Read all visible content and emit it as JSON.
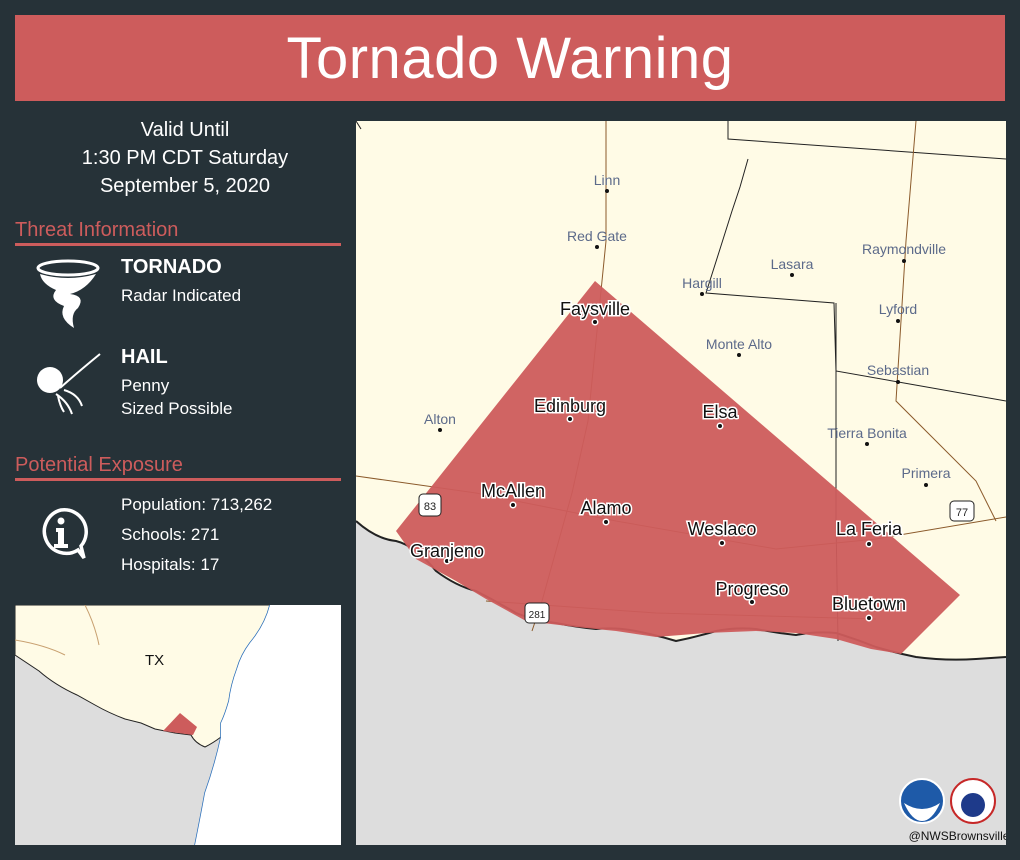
{
  "header": {
    "title": "Tornado Warning"
  },
  "valid": {
    "line1": "Valid Until",
    "line2": "1:30 PM CDT Saturday",
    "line3": "September 5, 2020"
  },
  "threat": {
    "heading": "Threat Information",
    "items": [
      {
        "icon": "tornado-icon",
        "title": "TORNADO",
        "lines": [
          "Radar Indicated"
        ]
      },
      {
        "icon": "hail-icon",
        "title": "HAIL",
        "lines": [
          "Penny",
          "Sized Possible"
        ]
      }
    ]
  },
  "exposure": {
    "heading": "Potential Exposure",
    "icon": "info-icon",
    "population": "Population: 713,262",
    "schools": "Schools: 271",
    "hospitals": "Hospitals: 17"
  },
  "inset": {
    "state_label": "TX"
  },
  "map": {
    "cities_in_warning": [
      "Faysville",
      "Edinburg",
      "Elsa",
      "McAllen",
      "Alamo",
      "Weslaco",
      "La Feria",
      "Granjeno",
      "Progreso",
      "Bluetown"
    ],
    "cities_outside": [
      "Linn",
      "Red Gate",
      "Hargill",
      "Lasara",
      "Raymondville",
      "Lyford",
      "Monte Alto",
      "Sebastian",
      "Alton",
      "Tierra Bonita",
      "Primera"
    ],
    "highway_shields": [
      "83",
      "281",
      "77"
    ],
    "credit": "@NWSBrownsville",
    "logos": [
      "noaa-logo",
      "nws-logo"
    ]
  },
  "colors": {
    "background": "#263238",
    "warning": "#cd5c5c",
    "land": "#fffbe6",
    "water": "#dddddd"
  }
}
